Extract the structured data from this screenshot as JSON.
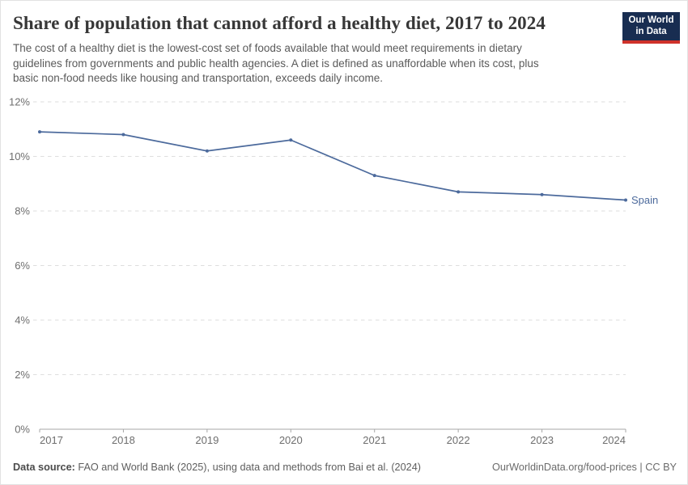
{
  "header": {
    "title": "Share of population that cannot afford a healthy diet, 2017 to 2024",
    "subtitle_lines": [
      "The cost of a healthy diet is the lowest-cost set of foods available that would meet requirements in dietary",
      "guidelines from governments and public health agencies. A diet is defined as unaffordable when its cost, plus",
      "basic non-food needs like housing and transportation, exceeds daily income."
    ],
    "logo": {
      "line1": "Our World",
      "line2": "in Data",
      "bg_color": "#182d51",
      "accent_color": "#cf322b"
    }
  },
  "chart_data": {
    "type": "line",
    "title": "Share of population that cannot afford a healthy diet, 2017 to 2024",
    "x": [
      2017,
      2018,
      2019,
      2020,
      2021,
      2022,
      2023,
      2024
    ],
    "series": [
      {
        "name": "Spain",
        "color": "#4c6a9c",
        "values": [
          10.9,
          10.8,
          10.2,
          10.6,
          9.3,
          8.7,
          8.6,
          8.4
        ]
      }
    ],
    "ylim": [
      0,
      12
    ],
    "ytick_step": 2,
    "ytick_suffix": "%",
    "grid": "horizontal-dashed",
    "legend_position": "end-of-line-label",
    "colors": {
      "grid": "#dedede",
      "axis": "#a7a7a7",
      "tick_label": "#6e6e6e"
    }
  },
  "footer": {
    "datasource_label": "Data source:",
    "datasource_text": "FAO and World Bank (2025), using data and methods from Bai et al. (2024)",
    "credit": "OurWorldinData.org/food-prices | CC BY"
  }
}
